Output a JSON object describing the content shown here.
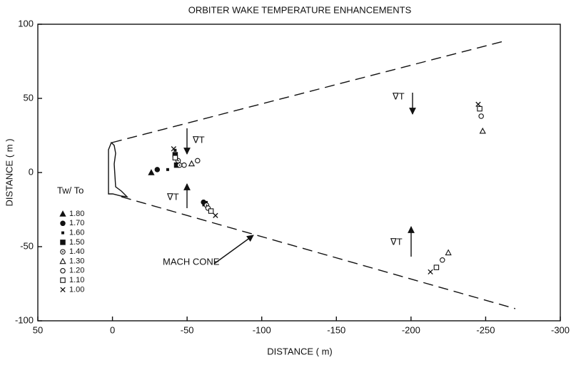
{
  "chart_data": {
    "type": "scatter",
    "title": "ORBITER WAKE TEMPERATURE ENHANCEMENTS",
    "xlabel": "DISTANCE ( m)",
    "ylabel": "DISTANCE ( m )",
    "xlim": [
      50,
      -300
    ],
    "ylim": [
      -100,
      100
    ],
    "xticks": [
      50,
      0,
      -50,
      -100,
      -150,
      -200,
      -250,
      -300
    ],
    "yticks": [
      100,
      50,
      0,
      -50,
      -100
    ],
    "legend": "lower left",
    "legend_title": "Tw/ To",
    "annotations": [
      "MACH CONE",
      "∇T",
      "∇T",
      "∇T",
      "∇T"
    ],
    "series": [
      {
        "name": "1.80",
        "color": "#111",
        "marker": "triangle-filled",
        "x": [
          -26
        ],
        "y": [
          0
        ]
      },
      {
        "name": "1.70",
        "color": "#111",
        "marker": "circle-filled",
        "x": [
          -30,
          -61
        ],
        "y": [
          2,
          -20
        ]
      },
      {
        "name": "1.60",
        "color": "#111",
        "marker": "dot",
        "x": [
          -37,
          -42
        ],
        "y": [
          2,
          15
        ]
      },
      {
        "name": "1.50",
        "color": "#111",
        "marker": "square-filled",
        "x": [
          -42,
          -43,
          -62
        ],
        "y": [
          12,
          5,
          -21
        ]
      },
      {
        "name": "1.40",
        "color": "#111",
        "marker": "circle-dot",
        "x": [
          -44,
          -45,
          -63
        ],
        "y": [
          8,
          5,
          -22
        ]
      },
      {
        "name": "1.30",
        "color": "#111",
        "marker": "triangle-open",
        "x": [
          -53,
          -248,
          -225
        ],
        "y": [
          6,
          28,
          -54
        ]
      },
      {
        "name": "1.20",
        "color": "#111",
        "marker": "circle-open",
        "x": [
          -48,
          -57,
          -64,
          -247,
          -221
        ],
        "y": [
          5,
          8,
          -24,
          38,
          -59
        ]
      },
      {
        "name": "1.10",
        "color": "#111",
        "marker": "square-open",
        "x": [
          -42,
          -66,
          -246,
          -217
        ],
        "y": [
          10,
          -26,
          43,
          -64
        ]
      },
      {
        "name": "1.00",
        "color": "#111",
        "marker": "cross",
        "x": [
          -41,
          -69,
          -245,
          -213
        ],
        "y": [
          16,
          -29,
          46,
          -67
        ]
      }
    ]
  }
}
